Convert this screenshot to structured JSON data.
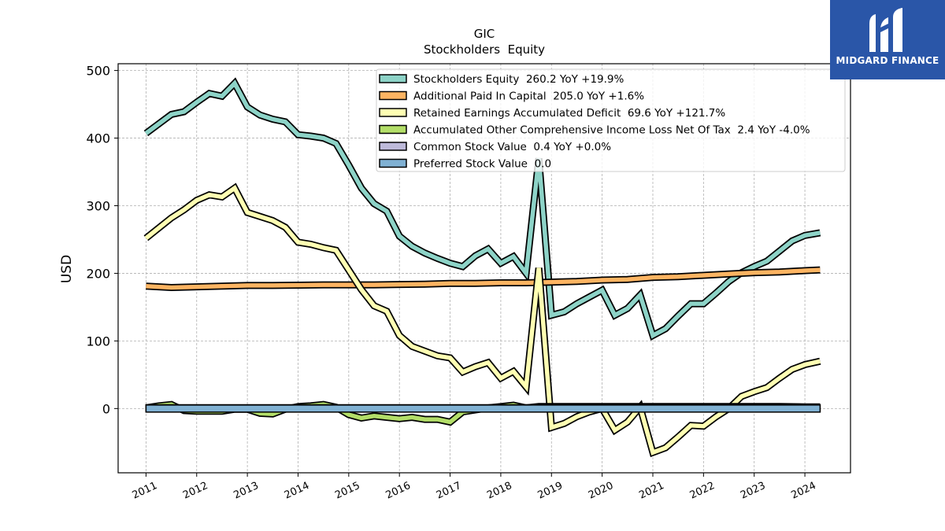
{
  "brand": {
    "name": "MIDGARD FINANCE",
    "logo_bg": "#2a56a8",
    "icon": "midgard-m-logo-icon"
  },
  "chart_data": {
    "type": "line",
    "title": "GIC",
    "subtitle": "Stockholders  Equity",
    "ylabel": "USD",
    "xlabel": "",
    "ylim": [
      -95,
      510
    ],
    "xlim": [
      2010.45,
      2024.9
    ],
    "yticks": [
      0,
      100,
      200,
      300,
      400,
      500
    ],
    "xticks": [
      2011,
      2012,
      2013,
      2014,
      2015,
      2016,
      2017,
      2018,
      2019,
      2020,
      2021,
      2022,
      2023,
      2024
    ],
    "grid": true,
    "legend_position": "top-right",
    "series": [
      {
        "name": "Stockholders Equity  260.2 YoY +19.9%",
        "color": "#8dd3c7",
        "x": [
          2011.0,
          2011.25,
          2011.5,
          2011.75,
          2012.0,
          2012.25,
          2012.5,
          2012.75,
          2013.0,
          2013.25,
          2013.5,
          2013.75,
          2014.0,
          2014.25,
          2014.5,
          2014.75,
          2015.0,
          2015.25,
          2015.5,
          2015.75,
          2016.0,
          2016.25,
          2016.5,
          2016.75,
          2017.0,
          2017.25,
          2017.5,
          2017.75,
          2018.0,
          2018.25,
          2018.5,
          2018.75,
          2019.0,
          2019.25,
          2019.5,
          2019.75,
          2020.0,
          2020.25,
          2020.5,
          2020.75,
          2021.0,
          2021.25,
          2021.5,
          2021.75,
          2022.0,
          2022.25,
          2022.5,
          2022.75,
          2023.0,
          2023.25,
          2023.5,
          2023.75,
          2024.0,
          2024.3
        ],
        "y": [
          407,
          421,
          435,
          439,
          453,
          466,
          462,
          481,
          446,
          434,
          428,
          424,
          405,
          403,
          400,
          392,
          360,
          326,
          303,
          292,
          255,
          240,
          230,
          222,
          215,
          210,
          226,
          236,
          215,
          225,
          200,
          370,
          138,
          143,
          155,
          165,
          175,
          138,
          148,
          168,
          108,
          118,
          137,
          155,
          155,
          171,
          188,
          201,
          210,
          218,
          233,
          248,
          256,
          260
        ]
      },
      {
        "name": "Additional Paid In Capital  205.0 YoY +1.6%",
        "color": "#fdb462",
        "x": [
          2011.0,
          2011.5,
          2012.0,
          2012.5,
          2013.0,
          2013.5,
          2014.0,
          2014.5,
          2015.0,
          2015.5,
          2016.0,
          2016.5,
          2017.0,
          2017.5,
          2018.0,
          2018.5,
          2019.0,
          2019.5,
          2020.0,
          2020.5,
          2021.0,
          2021.5,
          2022.0,
          2022.5,
          2023.0,
          2023.5,
          2024.0,
          2024.3
        ],
        "y": [
          181,
          179,
          180,
          181,
          182,
          182,
          182.5,
          183,
          183,
          183,
          183.5,
          184,
          185,
          185,
          186,
          186,
          187,
          188,
          190,
          191,
          194,
          195,
          197,
          199,
          201,
          202,
          204,
          205
        ]
      },
      {
        "name": "Retained Earnings Accumulated Deficit  69.6 YoY +121.7%",
        "color": "#ffffb3",
        "x": [
          2011.0,
          2011.25,
          2011.5,
          2011.75,
          2012.0,
          2012.25,
          2012.5,
          2012.75,
          2013.0,
          2013.25,
          2013.5,
          2013.75,
          2014.0,
          2014.25,
          2014.5,
          2014.75,
          2015.0,
          2015.25,
          2015.5,
          2015.75,
          2016.0,
          2016.25,
          2016.5,
          2016.75,
          2017.0,
          2017.25,
          2017.5,
          2017.75,
          2018.0,
          2018.25,
          2018.5,
          2018.75,
          2019.0,
          2019.25,
          2019.5,
          2019.75,
          2020.0,
          2020.25,
          2020.5,
          2020.75,
          2021.0,
          2021.25,
          2021.5,
          2021.75,
          2022.0,
          2022.25,
          2022.5,
          2022.75,
          2023.0,
          2023.25,
          2023.5,
          2023.75,
          2024.0,
          2024.3
        ],
        "y": [
          252,
          267,
          282,
          294,
          308,
          316,
          313,
          326,
          290,
          284,
          278,
          268,
          246,
          243,
          238,
          234,
          205,
          176,
          152,
          144,
          108,
          92,
          85,
          78,
          75,
          54,
          62,
          68,
          45,
          55,
          32,
          208,
          -28,
          -22,
          -12,
          -5,
          0,
          -32,
          -20,
          2,
          -65,
          -58,
          -42,
          -25,
          -26,
          -12,
          0,
          18,
          25,
          31,
          45,
          58,
          65,
          70
        ]
      },
      {
        "name": "Accumulated Other Comprehensive Income Loss Net Of Tax  2.4 YoY -4.0%",
        "color": "#b3de69",
        "x": [
          2011.0,
          2011.25,
          2011.5,
          2011.75,
          2012.0,
          2012.25,
          2012.5,
          2012.75,
          2013.0,
          2013.25,
          2013.5,
          2013.75,
          2014.0,
          2014.25,
          2014.5,
          2014.75,
          2015.0,
          2015.25,
          2015.5,
          2015.75,
          2016.0,
          2016.25,
          2016.5,
          2016.75,
          2017.0,
          2017.25,
          2017.5,
          2017.75,
          2018.0,
          2018.25,
          2018.5,
          2018.75,
          2019.0,
          2019.5,
          2020.0,
          2020.5,
          2021.0,
          2021.5,
          2022.0,
          2022.5,
          2023.0,
          2023.5,
          2024.0,
          2024.3
        ],
        "y": [
          1,
          4,
          6,
          -3,
          -4,
          -4,
          -4,
          -1,
          -1,
          -7,
          -8,
          -1,
          3,
          4,
          6,
          2,
          -9,
          -14,
          -11,
          -13,
          -15,
          -13,
          -16,
          -16,
          -20,
          -5,
          -2,
          1,
          3,
          5,
          1,
          3,
          3,
          3,
          3,
          3,
          3,
          3,
          3,
          3,
          3,
          3,
          2.5,
          2.4
        ]
      },
      {
        "name": "Common Stock Value  0.4 YoY +0.0%",
        "color": "#bebada",
        "x": [
          2011.0,
          2024.3
        ],
        "y": [
          0.4,
          0.4
        ]
      },
      {
        "name": "Preferred Stock Value  0.0",
        "color": "#80b1d3",
        "x": [
          2011.0,
          2024.3
        ],
        "y": [
          0,
          0
        ]
      }
    ]
  }
}
